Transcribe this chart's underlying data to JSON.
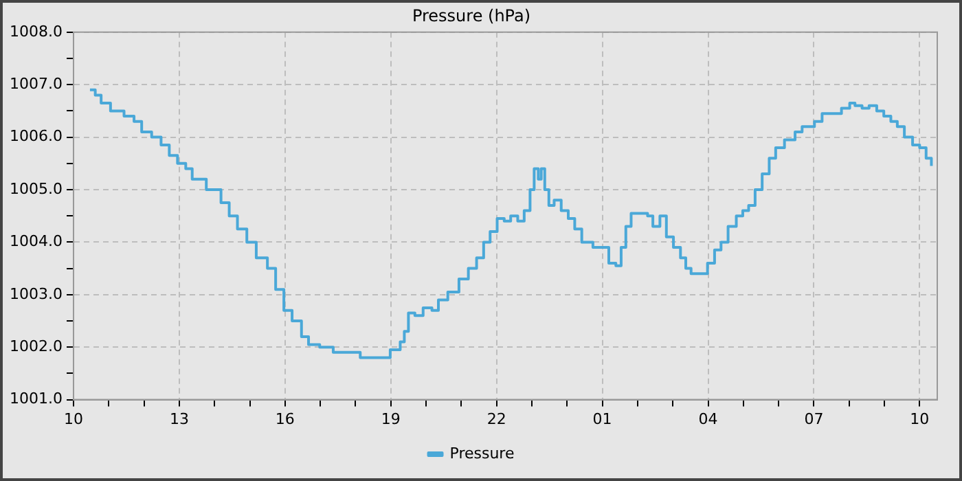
{
  "chart_data": {
    "type": "step",
    "title": "Pressure (hPa)",
    "x": [
      "--01-01T10:28",
      "--01-01T10:37",
      "--01-01T10:47",
      "--01-01T11:03",
      "--01-01T11:26",
      "--01-01T11:43",
      "--01-01T11:56",
      "--01-01T12:13",
      "--01-01T12:29",
      "--01-01T12:43",
      "--01-01T12:57",
      "--01-01T13:11",
      "--01-01T13:22",
      "--01-01T13:46",
      "--01-01T14:02",
      "--01-01T14:11",
      "--01-01T14:25",
      "--01-01T14:39",
      "--01-01T14:55",
      "--01-01T15:11",
      "--01-01T15:30",
      "--01-01T15:44",
      "--01-01T15:58",
      "--01-01T16:12",
      "--01-01T16:28",
      "--01-01T16:40",
      "--01-01T16:59",
      "--01-01T17:22",
      "--01-01T17:59",
      "--01-01T18:08",
      "--01-01T18:41",
      "--01-01T18:59",
      "--01-01T19:16",
      "--01-01T19:23",
      "--01-01T19:30",
      "--01-01T19:41",
      "--01-01T19:55",
      "--01-01T20:10",
      "--01-01T20:21",
      "--01-01T20:37",
      "--01-01T20:56",
      "--01-01T21:12",
      "--01-01T21:26",
      "--01-01T21:38",
      "--01-01T21:49",
      "--01-01T22:01",
      "--01-01T22:13",
      "--01-01T22:24",
      "--01-01T22:36",
      "--01-01T22:47",
      "--01-01T22:57",
      "--01-01T23:04",
      "--01-01T23:11",
      "--01-01T23:16",
      "--01-01T23:22",
      "--01-01T23:29",
      "--01-01T23:38",
      "--01-01T23:50",
      "--01-02T00:02",
      "--01-02T00:13",
      "--01-02T00:25",
      "--01-02T00:44",
      "--01-02T01:00",
      "--01-02T01:11",
      "--01-02T01:23",
      "--01-02T01:32",
      "--01-02T01:40",
      "--01-02T01:49",
      "--01-02T02:03",
      "--01-02T02:17",
      "--01-02T02:26",
      "--01-02T02:38",
      "--01-02T02:49",
      "--01-02T03:01",
      "--01-02T03:13",
      "--01-02T03:22",
      "--01-02T03:31",
      "--01-02T03:50",
      "--01-02T03:59",
      "--01-02T04:11",
      "--01-02T04:22",
      "--01-02T04:34",
      "--01-02T04:48",
      "--01-02T04:59",
      "--01-02T05:09",
      "--01-02T05:20",
      "--01-02T05:32",
      "--01-02T05:44",
      "--01-02T05:55",
      "--01-02T06:10",
      "--01-02T06:28",
      "--01-02T06:40",
      "--01-02T07:01",
      "--01-02T07:14",
      "--01-02T07:33",
      "--01-02T07:47",
      "--01-02T08:01",
      "--01-02T08:10",
      "--01-02T08:22",
      "--01-02T08:34",
      "--01-02T08:47",
      "--01-02T08:59",
      "--01-02T09:11",
      "--01-02T09:22",
      "--01-02T09:34",
      "--01-02T09:48",
      "--01-02T10:00",
      "--01-02T10:11",
      "--01-02T10:20"
    ],
    "series": [
      {
        "name": "Pressure",
        "color": "#4aa8d8",
        "values": [
          1006.9,
          1006.8,
          1006.65,
          1006.5,
          1006.4,
          1006.3,
          1006.1,
          1006.0,
          1005.85,
          1005.65,
          1005.5,
          1005.4,
          1005.2,
          1005.0,
          1005.0,
          1004.75,
          1004.5,
          1004.25,
          1004.0,
          1003.7,
          1003.5,
          1003.1,
          1002.7,
          1002.5,
          1002.2,
          1002.05,
          1002.0,
          1001.9,
          1001.9,
          1001.8,
          1001.8,
          1001.95,
          1002.1,
          1002.3,
          1002.65,
          1002.6,
          1002.75,
          1002.7,
          1002.9,
          1003.05,
          1003.3,
          1003.5,
          1003.7,
          1004.0,
          1004.2,
          1004.45,
          1004.4,
          1004.5,
          1004.4,
          1004.6,
          1005.0,
          1005.4,
          1005.2,
          1005.4,
          1005.0,
          1004.7,
          1004.8,
          1004.6,
          1004.45,
          1004.25,
          1004.0,
          1003.9,
          1003.9,
          1003.6,
          1003.55,
          1003.9,
          1004.3,
          1004.55,
          1004.55,
          1004.5,
          1004.3,
          1004.5,
          1004.1,
          1003.9,
          1003.7,
          1003.5,
          1003.4,
          1003.4,
          1003.6,
          1003.85,
          1004.0,
          1004.3,
          1004.5,
          1004.6,
          1004.7,
          1005.0,
          1005.3,
          1005.6,
          1005.8,
          1005.95,
          1006.1,
          1006.2,
          1006.3,
          1006.45,
          1006.45,
          1006.55,
          1006.65,
          1006.6,
          1006.55,
          1006.6,
          1006.5,
          1006.4,
          1006.3,
          1006.2,
          1006.0,
          1005.85,
          1005.8,
          1005.6,
          1005.45
        ]
      }
    ],
    "xlim": [
      "--01-01T10:00",
      "--01-02T10:30"
    ],
    "xticks": [
      {
        "value": "--01-01T10:00",
        "label": "10"
      },
      {
        "value": "--01-01T11:00",
        "label": null
      },
      {
        "value": "--01-01T12:00",
        "label": null
      },
      {
        "value": "--01-01T13:00",
        "label": "13"
      },
      {
        "value": "--01-01T14:00",
        "label": null
      },
      {
        "value": "--01-01T15:00",
        "label": null
      },
      {
        "value": "--01-01T16:00",
        "label": "16"
      },
      {
        "value": "--01-01T17:00",
        "label": null
      },
      {
        "value": "--01-01T18:00",
        "label": null
      },
      {
        "value": "--01-01T19:00",
        "label": "19"
      },
      {
        "value": "--01-01T20:00",
        "label": null
      },
      {
        "value": "--01-01T21:00",
        "label": null
      },
      {
        "value": "--01-01T22:00",
        "label": "22"
      },
      {
        "value": "--01-01T23:00",
        "label": null
      },
      {
        "value": "--01-02T00:00",
        "label": null
      },
      {
        "value": "--01-02T01:00",
        "label": "01"
      },
      {
        "value": "--01-02T02:00",
        "label": null
      },
      {
        "value": "--01-02T03:00",
        "label": null
      },
      {
        "value": "--01-02T04:00",
        "label": "04"
      },
      {
        "value": "--01-02T05:00",
        "label": null
      },
      {
        "value": "--01-02T06:00",
        "label": null
      },
      {
        "value": "--01-02T07:00",
        "label": "07"
      },
      {
        "value": "--01-02T08:00",
        "label": null
      },
      {
        "value": "--01-02T09:00",
        "label": null
      },
      {
        "value": "--01-02T10:00",
        "label": "10"
      }
    ],
    "ylim": [
      1001,
      1008
    ],
    "yticks": [
      {
        "value": 1001,
        "label": "1001.0"
      },
      {
        "value": 1001.5,
        "label": null
      },
      {
        "value": 1002,
        "label": "1002.0"
      },
      {
        "value": 1002.5,
        "label": null
      },
      {
        "value": 1003,
        "label": "1003.0"
      },
      {
        "value": 1003.5,
        "label": null
      },
      {
        "value": 1004,
        "label": "1004.0"
      },
      {
        "value": 1004.5,
        "label": null
      },
      {
        "value": 1005,
        "label": "1005.0"
      },
      {
        "value": 1005.5,
        "label": null
      },
      {
        "value": 1006,
        "label": "1006.0"
      },
      {
        "value": 1006.5,
        "label": null
      },
      {
        "value": 1007,
        "label": "1007.0"
      },
      {
        "value": 1007.5,
        "label": null
      },
      {
        "value": 1008,
        "label": "1008.0"
      }
    ],
    "grid": true,
    "legend": "bottom",
    "marker": "none",
    "line_style": "solid"
  }
}
